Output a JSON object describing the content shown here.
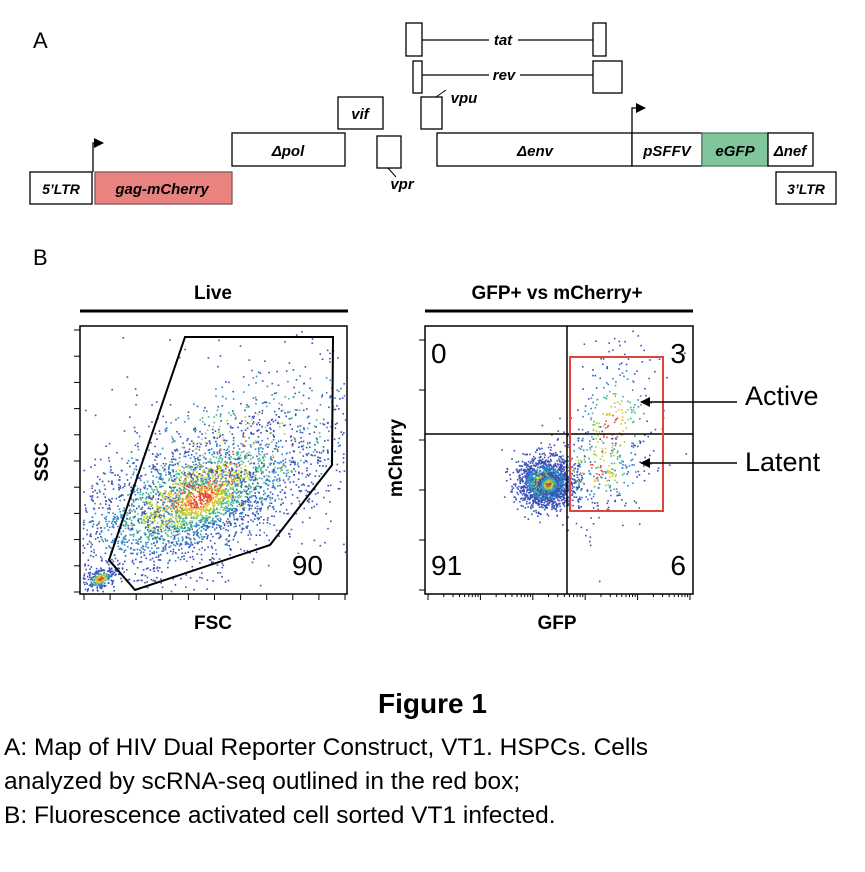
{
  "panel_a": {
    "label": "A",
    "segments": [
      {
        "id": "ltr5",
        "label": "5’LTR",
        "fill": "#ffffff"
      },
      {
        "id": "gag",
        "label": "gag-mCherry",
        "fill": "#e8837f"
      },
      {
        "id": "pol",
        "label": "Δpol",
        "fill": "#ffffff"
      },
      {
        "id": "vif",
        "label": "vif",
        "fill": "#ffffff"
      },
      {
        "id": "vpr",
        "label": "vpr",
        "fill": "#ffffff"
      },
      {
        "id": "vpu",
        "label": "vpu",
        "fill": "#ffffff"
      },
      {
        "id": "tat",
        "label": "tat",
        "fill": "#ffffff"
      },
      {
        "id": "rev",
        "label": "rev",
        "fill": "#ffffff"
      },
      {
        "id": "env",
        "label": "Δenv",
        "fill": "#ffffff"
      },
      {
        "id": "psffv",
        "label": "pSFFV",
        "fill": "#ffffff"
      },
      {
        "id": "egfp",
        "label": "eGFP",
        "fill": "#7fc79a"
      },
      {
        "id": "nef",
        "label": "Δnef",
        "fill": "#ffffff"
      },
      {
        "id": "ltr3",
        "label": "3’LTR",
        "fill": "#ffffff"
      }
    ]
  },
  "panel_b": {
    "label": "B",
    "live": {
      "title": "Live",
      "xlabel": "FSC",
      "ylabel": "SSC",
      "gate_value": "90"
    },
    "quadrants": {
      "title": "GFP+ vs mCherry+",
      "xlabel": "GFP",
      "ylabel": "mCherry",
      "top_left": "0",
      "top_right": "3",
      "bottom_left": "91",
      "bottom_right": "6",
      "sorted_gate_color": "#e0443a"
    },
    "annotations": {
      "active": "Active",
      "latent": "Latent"
    }
  },
  "figure": {
    "title": "Figure 1",
    "caption": [
      "A: Map of HIV Dual Reporter Construct, VT1. HSPCs. Cells",
      "analyzed by scRNA-seq outlined  in the red box;",
      "B: Fluorescence activated cell sorted VT1 infected."
    ]
  }
}
